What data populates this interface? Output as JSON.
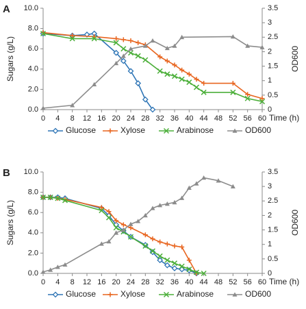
{
  "chart_data": [
    {
      "type": "line",
      "panel_label": "A",
      "y_label": "Sugars (g/L)",
      "y2_label": "OD600",
      "x_label": "Time (h)",
      "xlim": [
        0,
        60
      ],
      "xticks": [
        0,
        4,
        8,
        12,
        16,
        20,
        24,
        28,
        32,
        36,
        40,
        44,
        48,
        52,
        56,
        60
      ],
      "ylim": [
        0,
        10
      ],
      "yticks": [
        {
          "value": 0,
          "label": "0.0"
        },
        {
          "value": 2,
          "label": "2.0"
        },
        {
          "value": 4,
          "label": "4.0"
        },
        {
          "value": 6,
          "label": "6.0"
        },
        {
          "value": 8,
          "label": "8.0"
        },
        {
          "value": 10,
          "label": "10.0"
        }
      ],
      "y2lim": [
        0,
        3.5
      ],
      "y2ticks": [
        0,
        0.5,
        1,
        1.5,
        2,
        2.5,
        3,
        3.5
      ],
      "series": [
        {
          "name": "Glucose",
          "color": "#2e75b6",
          "marker": "diamond",
          "x": [
            0,
            8,
            12,
            14,
            20,
            22,
            24,
            26,
            28,
            30
          ],
          "values": [
            7.5,
            7.3,
            7.4,
            7.5,
            5.6,
            4.8,
            3.8,
            2.6,
            1.0,
            0.0
          ]
        },
        {
          "name": "Xylose",
          "color": "#e8651f",
          "marker": "plus",
          "x": [
            0,
            8,
            14,
            20,
            22,
            24,
            26,
            28,
            32,
            34,
            36,
            38,
            40,
            42,
            44,
            52,
            56,
            60
          ],
          "values": [
            7.6,
            7.3,
            7.2,
            7.0,
            6.9,
            6.8,
            6.6,
            6.4,
            5.2,
            4.8,
            4.4,
            3.9,
            3.5,
            3.0,
            2.6,
            2.6,
            1.5,
            1.1
          ]
        },
        {
          "name": "Arabinose",
          "color": "#4caf3a",
          "marker": "cross",
          "x": [
            0,
            8,
            14,
            20,
            22,
            24,
            26,
            28,
            32,
            34,
            36,
            38,
            40,
            42,
            44,
            52,
            56,
            60
          ],
          "values": [
            7.5,
            7.0,
            7.0,
            6.6,
            6.0,
            5.6,
            5.3,
            4.9,
            3.8,
            3.5,
            3.3,
            3.0,
            2.7,
            2.2,
            1.7,
            1.7,
            1.1,
            0.8
          ]
        },
        {
          "name": "OD600",
          "color": "#8c8c8c",
          "marker": "triangle",
          "axis": "y2",
          "x": [
            0,
            8,
            14,
            20,
            22,
            24,
            28,
            30,
            34,
            36,
            38,
            52,
            56,
            60
          ],
          "values": [
            0.05,
            0.15,
            0.87,
            1.6,
            1.85,
            2.1,
            2.2,
            2.38,
            2.12,
            2.2,
            2.5,
            2.52,
            2.2,
            2.15
          ]
        }
      ]
    },
    {
      "type": "line",
      "panel_label": "B",
      "y_label": "Sugars (g/L)",
      "y2_label": "OD600",
      "x_label": "Time (h)",
      "xlim": [
        0,
        60
      ],
      "xticks": [
        0,
        4,
        8,
        12,
        16,
        20,
        24,
        28,
        32,
        36,
        40,
        44,
        48,
        52,
        56,
        60
      ],
      "ylim": [
        0,
        10
      ],
      "yticks": [
        {
          "value": 0,
          "label": "0.0"
        },
        {
          "value": 2,
          "label": "2.0"
        },
        {
          "value": 4,
          "label": "4.0"
        },
        {
          "value": 6,
          "label": "6.0"
        },
        {
          "value": 8,
          "label": "8.0"
        },
        {
          "value": 10,
          "label": "10.0"
        }
      ],
      "y2lim": [
        0,
        3.5
      ],
      "y2ticks": [
        0,
        0.5,
        1,
        1.5,
        2,
        2.5,
        3,
        3.5
      ],
      "series": [
        {
          "name": "Glucose",
          "color": "#2e75b6",
          "marker": "diamond",
          "x": [
            0,
            2,
            4,
            6,
            16,
            18,
            20,
            22,
            24,
            28,
            30,
            32,
            34,
            36,
            38,
            40,
            42
          ],
          "values": [
            7.5,
            7.5,
            7.5,
            7.4,
            6.4,
            5.7,
            4.8,
            4.2,
            3.6,
            2.8,
            2.1,
            1.3,
            0.8,
            0.5,
            0.4,
            0.3,
            0.0
          ]
        },
        {
          "name": "Xylose",
          "color": "#e8651f",
          "marker": "plus",
          "x": [
            0,
            2,
            4,
            6,
            16,
            18,
            20,
            22,
            24,
            28,
            30,
            32,
            34,
            36,
            38,
            40,
            42
          ],
          "values": [
            7.5,
            7.5,
            7.4,
            7.3,
            6.5,
            6.1,
            5.2,
            4.8,
            4.5,
            3.8,
            3.4,
            3.1,
            2.9,
            2.7,
            2.6,
            1.3,
            0.0
          ]
        },
        {
          "name": "Arabinose",
          "color": "#4caf3a",
          "marker": "cross",
          "x": [
            0,
            2,
            4,
            6,
            16,
            18,
            20,
            22,
            24,
            28,
            30,
            32,
            34,
            36,
            38,
            40,
            42,
            44
          ],
          "values": [
            7.5,
            7.5,
            7.4,
            7.2,
            6.2,
            5.5,
            4.5,
            4.1,
            3.6,
            2.7,
            2.2,
            1.7,
            1.3,
            1.0,
            0.7,
            0.4,
            0.1,
            0.0
          ]
        },
        {
          "name": "OD600",
          "color": "#8c8c8c",
          "marker": "triangle",
          "axis": "y2",
          "x": [
            0,
            2,
            4,
            6,
            16,
            18,
            20,
            22,
            24,
            26,
            28,
            30,
            32,
            34,
            36,
            38,
            40,
            42,
            44,
            48,
            52
          ],
          "values": [
            0.05,
            0.12,
            0.22,
            0.3,
            1.02,
            1.1,
            1.4,
            1.5,
            1.7,
            1.8,
            2.0,
            2.25,
            2.35,
            2.4,
            2.45,
            2.6,
            2.95,
            3.1,
            3.3,
            3.2,
            3.0
          ]
        }
      ]
    }
  ]
}
